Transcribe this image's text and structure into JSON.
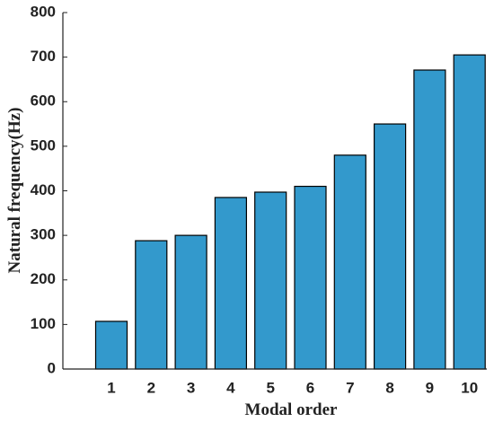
{
  "chart_data": {
    "type": "bar",
    "x_label": "Modal order",
    "y_label": "Natural frequency(Hz)",
    "categories": [
      "1",
      "2",
      "3",
      "4",
      "5",
      "6",
      "7",
      "8",
      "9",
      "10"
    ],
    "values": [
      107,
      288,
      300,
      385,
      397,
      410,
      480,
      550,
      671,
      705
    ],
    "color": "#3399cc",
    "ylim": [
      0,
      800
    ],
    "yticks": [
      0,
      100,
      200,
      300,
      400,
      500,
      600,
      700,
      800
    ],
    "grid": false
  }
}
